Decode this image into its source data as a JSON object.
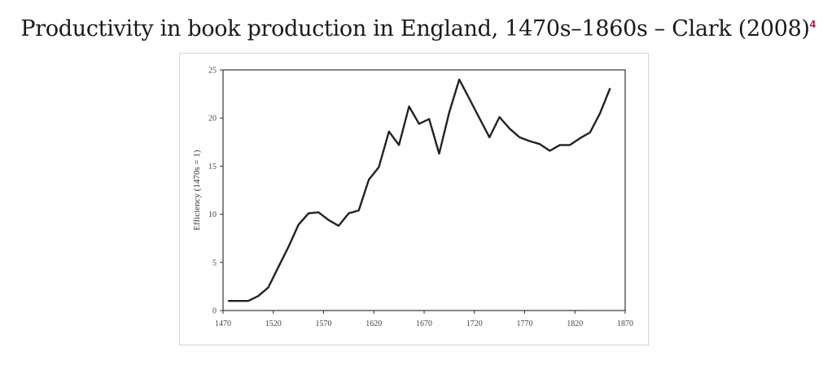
{
  "page": {
    "title": "Productivity in book production in England, 1470s–1860s – Clark (2008)",
    "footnote_marker": "4",
    "footnote_color": "#b0123c"
  },
  "chart_data": {
    "type": "line",
    "xlabel": "",
    "ylabel": "Efficiency (1470s = 1)",
    "xlim": [
      1470,
      1870
    ],
    "ylim": [
      0,
      25
    ],
    "xticks": [
      1470,
      1520,
      1570,
      1620,
      1670,
      1720,
      1770,
      1820,
      1870
    ],
    "yticks": [
      0,
      5,
      10,
      15,
      20,
      25
    ],
    "grid": false,
    "line_color": "#222222",
    "series": [
      {
        "x": [
          1475,
          1485,
          1495,
          1505,
          1515,
          1525,
          1535,
          1545,
          1555,
          1565,
          1575,
          1585,
          1595,
          1605,
          1615,
          1625,
          1635,
          1645,
          1655,
          1665,
          1675,
          1685,
          1695,
          1705,
          1715,
          1725,
          1735,
          1745,
          1755,
          1765,
          1775,
          1785,
          1795,
          1805,
          1815,
          1825,
          1835,
          1845,
          1855
        ],
        "y": [
          1.0,
          1.0,
          1.0,
          1.5,
          2.4,
          4.5,
          6.6,
          8.9,
          10.1,
          10.2,
          9.4,
          8.8,
          10.1,
          10.4,
          13.6,
          14.9,
          18.6,
          17.2,
          21.2,
          19.4,
          19.9,
          16.3,
          20.6,
          24.0,
          22.0,
          20.0,
          18.0,
          20.1,
          18.9,
          18.0,
          17.6,
          17.3,
          16.6,
          17.2,
          17.2,
          17.9,
          18.5,
          20.5,
          23.1
        ]
      }
    ]
  }
}
